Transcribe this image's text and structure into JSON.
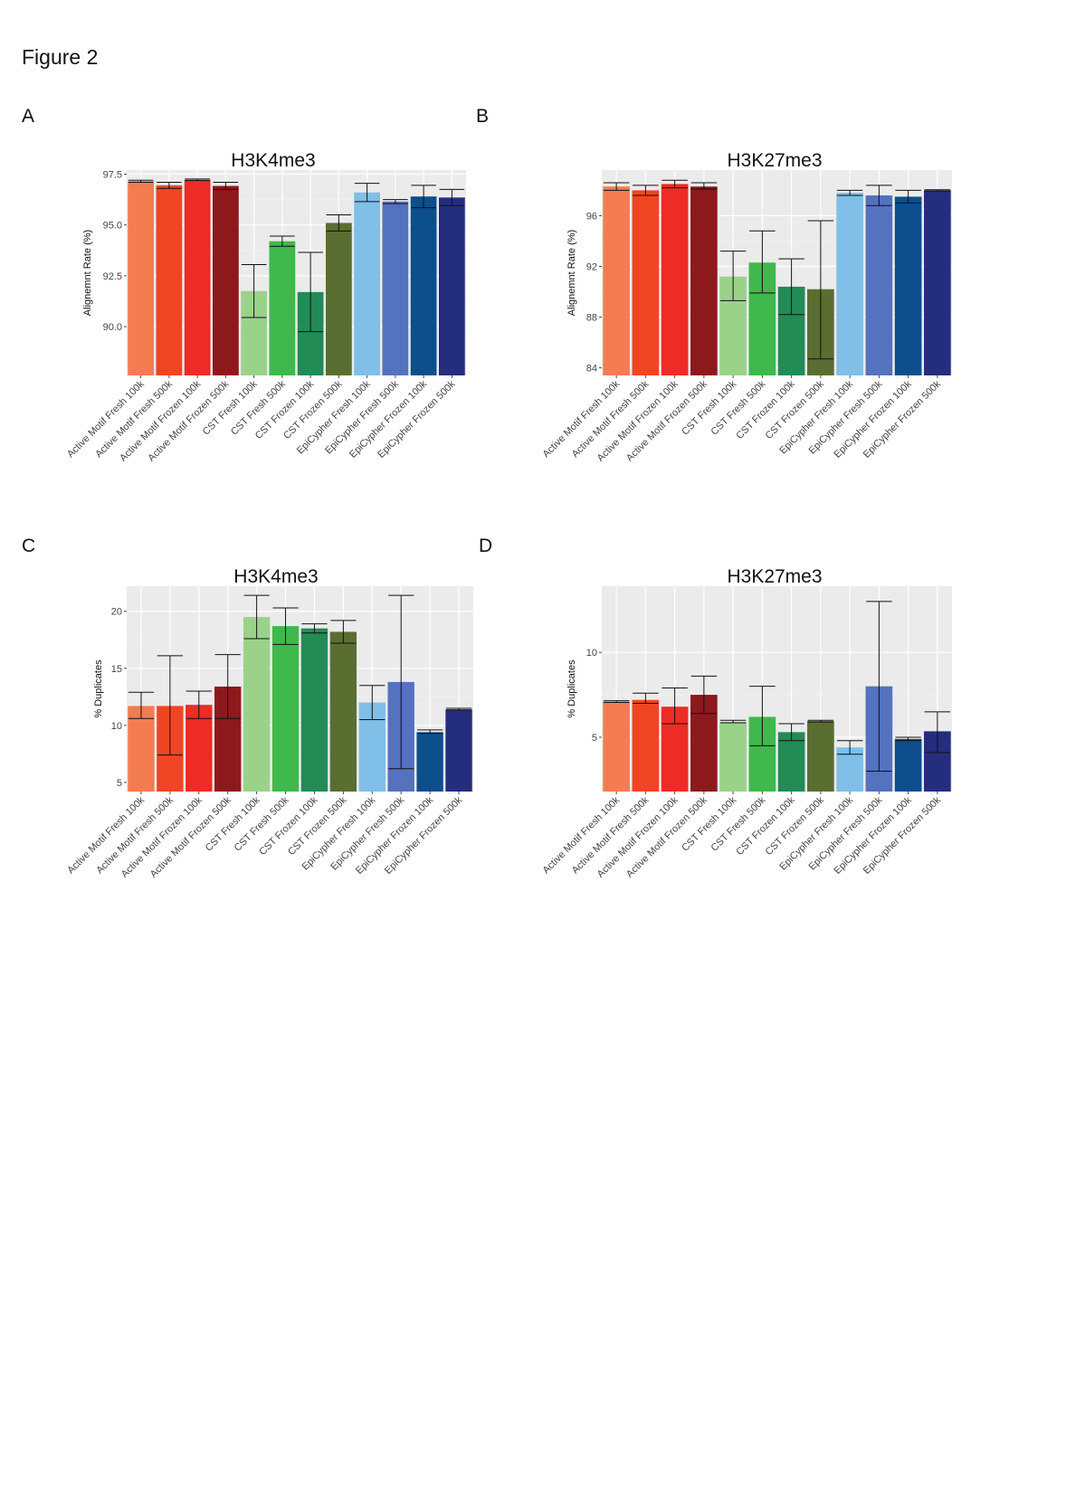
{
  "figure_title": "Figure 2",
  "colors": [
    "#f47c51",
    "#ef4523",
    "#ee2b24",
    "#8d191d",
    "#9bd28a",
    "#3fb84c",
    "#228b56",
    "#5a6e31",
    "#7fbfe8",
    "#5472bd",
    "#0d4f8c",
    "#252d7e"
  ],
  "chart_data": [
    {
      "panel": "A",
      "type": "bar",
      "title": "H3K4me3",
      "ylabel": "Alignemnt Rate (%)",
      "xlabel": "",
      "ylim": [
        87.6,
        97.7
      ],
      "yticks": [
        90.0,
        92.5,
        95.0,
        97.5
      ],
      "ytick_labels": [
        "90.0",
        "92.5",
        "95.0",
        "97.5"
      ],
      "grid": true,
      "categories": [
        "Active Motif Fresh 100k",
        "Active Motif Fresh 500k",
        "Active Motif Frozen 100k",
        "Active Motif Frozen 500k",
        "CST Fresh 100k",
        "CST Fresh 500k",
        "CST Frozen 100k",
        "CST Frozen 500k",
        "EpiCypher Fresh 100k",
        "EpiCypher Fresh 500k",
        "EpiCypher Frozen 100k",
        "EpiCypher Frozen 500k"
      ],
      "values": [
        97.15,
        96.95,
        97.22,
        96.92,
        91.75,
        94.2,
        91.7,
        95.1,
        96.6,
        96.15,
        96.4,
        96.35
      ],
      "error_low": [
        97.1,
        96.8,
        97.18,
        96.75,
        90.45,
        93.95,
        89.75,
        94.7,
        96.15,
        96.05,
        95.85,
        95.95
      ],
      "error_high": [
        97.2,
        97.1,
        97.26,
        97.1,
        93.05,
        94.45,
        93.65,
        95.5,
        97.05,
        96.25,
        96.95,
        96.75
      ]
    },
    {
      "panel": "B",
      "type": "bar",
      "title": "H3K27me3",
      "ylabel": "Alignemnt Rate (%)",
      "xlabel": "",
      "ylim": [
        83.4,
        99.6
      ],
      "yticks": [
        84,
        88,
        92,
        96
      ],
      "ytick_labels": [
        "84",
        "88",
        "92",
        "96"
      ],
      "grid": true,
      "categories": [
        "Active Motif Fresh 100k",
        "Active Motif Fresh 500k",
        "Active Motif Frozen 100k",
        "Active Motif Frozen 500k",
        "CST Fresh 100k",
        "CST Fresh 500k",
        "CST Frozen 100k",
        "CST Frozen 500k",
        "EpiCypher Fresh 100k",
        "EpiCypher Fresh 500k",
        "EpiCypher Frozen 100k",
        "EpiCypher Frozen 500k"
      ],
      "values": [
        98.3,
        98.0,
        98.5,
        98.3,
        91.2,
        92.3,
        90.4,
        90.2,
        97.8,
        97.6,
        97.5,
        98.0
      ],
      "error_low": [
        98.0,
        97.6,
        98.2,
        98.1,
        89.3,
        89.9,
        88.2,
        84.7,
        97.6,
        96.8,
        97.0,
        97.95
      ],
      "error_high": [
        98.6,
        98.4,
        98.8,
        98.6,
        93.2,
        94.8,
        92.6,
        95.6,
        98.0,
        98.4,
        98.0,
        98.05
      ]
    },
    {
      "panel": "C",
      "type": "bar",
      "title": "H3K4me3",
      "ylabel": "% Duplicates",
      "xlabel": "",
      "ylim": [
        4.2,
        22.2
      ],
      "yticks": [
        5,
        10,
        15,
        20
      ],
      "ytick_labels": [
        "5",
        "10",
        "15",
        "20"
      ],
      "grid": true,
      "categories": [
        "Active Motif Fresh 100k",
        "Active Motif Fresh 500k",
        "Active Motif Frozen 100k",
        "Active Motif Frozen 500k",
        "CST Fresh 100k",
        "CST Fresh 500k",
        "CST Frozen 100k",
        "CST Frozen 500k",
        "EpiCypher Fresh 100k",
        "EpiCypher Fresh 500k",
        "EpiCypher Frozen 100k",
        "EpiCypher Frozen 500k"
      ],
      "values": [
        11.7,
        11.7,
        11.8,
        13.4,
        19.5,
        18.7,
        18.5,
        18.2,
        12.0,
        13.8,
        9.4,
        11.4
      ],
      "error_low": [
        10.6,
        7.4,
        10.6,
        10.6,
        17.6,
        17.1,
        18.1,
        17.2,
        10.5,
        6.2,
        9.3,
        11.35
      ],
      "error_high": [
        12.9,
        16.1,
        13.0,
        16.2,
        21.4,
        20.3,
        18.9,
        19.2,
        13.5,
        21.4,
        9.6,
        11.5
      ]
    },
    {
      "panel": "D",
      "type": "bar",
      "title": "H3K27me3",
      "ylabel": "% Duplicates",
      "xlabel": "",
      "ylim": [
        1.8,
        13.9
      ],
      "yticks": [
        5,
        10
      ],
      "ytick_labels": [
        "5",
        "10"
      ],
      "grid": true,
      "categories": [
        "Active Motif Fresh 100k",
        "Active Motif Fresh 500k",
        "Active Motif Frozen 100k",
        "Active Motif Frozen 500k",
        "CST Fresh 100k",
        "CST Fresh 500k",
        "CST Frozen 100k",
        "CST Frozen 500k",
        "EpiCypher Fresh 100k",
        "EpiCypher Fresh 500k",
        "EpiCypher Frozen 100k",
        "EpiCypher Frozen 500k"
      ],
      "values": [
        7.1,
        7.2,
        6.8,
        7.5,
        5.9,
        6.2,
        5.3,
        5.95,
        4.4,
        8.0,
        4.9,
        5.35
      ],
      "error_low": [
        7.05,
        7.0,
        5.8,
        6.4,
        5.85,
        4.5,
        4.8,
        5.9,
        4.0,
        3.0,
        4.8,
        4.1
      ],
      "error_high": [
        7.15,
        7.6,
        7.9,
        8.6,
        6.0,
        8.0,
        5.8,
        6.0,
        4.8,
        13.0,
        5.0,
        6.5
      ]
    }
  ]
}
